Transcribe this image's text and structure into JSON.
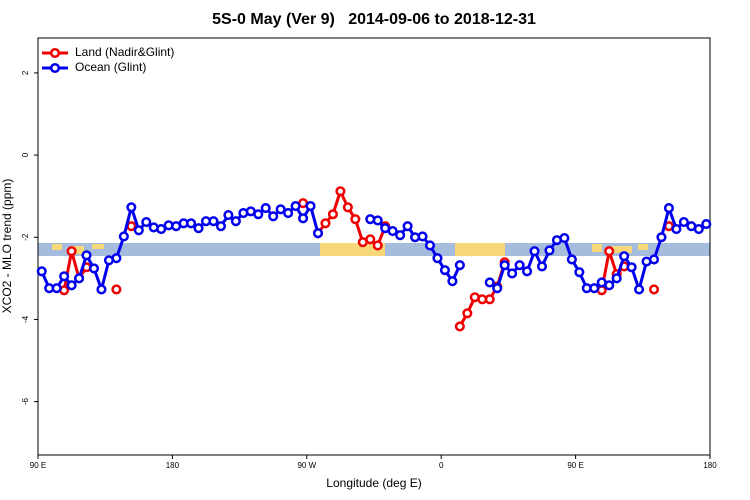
{
  "chart_data": {
    "type": "line",
    "title": "5S-0 May (Ver 9)   2014-09-06 to 2018-12-31",
    "x_label": "Longitude (deg E)",
    "y_label": "XCO2 - MLO trend (ppm)",
    "xlim": [
      90,
      540
    ],
    "ylim": [
      -7.3,
      2.85
    ],
    "xticks": [
      {
        "value": 90,
        "label": "90 E"
      },
      {
        "value": 180,
        "label": "180"
      },
      {
        "value": 270,
        "label": "90 W"
      },
      {
        "value": 360,
        "label": "0"
      },
      {
        "value": 450,
        "label": "90 E"
      },
      {
        "value": 540,
        "label": "180"
      }
    ],
    "yticks": [
      2,
      0,
      -2,
      -4,
      -6
    ],
    "legend": "top-left",
    "x": [
      92.5,
      97.5,
      102.5,
      107.5,
      112.5,
      117.5,
      122.5,
      127.5,
      132.5,
      137.5,
      142.5,
      147.5,
      152.5,
      157.5,
      162.5,
      167.5,
      172.5,
      177.5,
      182.5,
      187.5,
      192.5,
      197.5,
      202.5,
      207.5,
      212.5,
      217.5,
      222.5,
      227.5,
      232.5,
      237.5,
      242.5,
      247.5,
      252.5,
      257.5,
      262.5,
      267.5,
      272.5,
      277.5,
      282.5,
      287.5,
      292.5,
      297.5,
      302.5,
      307.5,
      312.5,
      317.5,
      322.5,
      327.5,
      332.5,
      337.5,
      342.5,
      347.5,
      352.5,
      357.5,
      362.5,
      367.5,
      372.5,
      377.5,
      382.5,
      387.5,
      392.5,
      397.5,
      402.5,
      407.5,
      412.5,
      417.5,
      422.5,
      427.5,
      432.5,
      437.5,
      442.5,
      447.5,
      452.5,
      457.5,
      462.5,
      467.5,
      472.5,
      477.5,
      482.5,
      487.5,
      492.5,
      497.5,
      502.5,
      507.5,
      512.5,
      517.5,
      522.5,
      527.5,
      532.5,
      537.5
    ],
    "series": [
      {
        "name": "Land (Nadir&Glint)",
        "color": "#ee0000",
        "values": [
          null,
          null,
          null,
          -3.29,
          -2.34,
          -3.0,
          -2.73,
          null,
          null,
          null,
          -3.27,
          null,
          -1.73,
          null,
          null,
          null,
          null,
          null,
          null,
          null,
          null,
          null,
          null,
          null,
          null,
          null,
          null,
          null,
          null,
          null,
          null,
          null,
          null,
          null,
          null,
          -1.17,
          null,
          -1.9,
          -1.66,
          -1.44,
          -0.88,
          -1.27,
          -1.56,
          -2.12,
          -2.05,
          -2.2,
          -1.73,
          null,
          null,
          null,
          null,
          null,
          null,
          null,
          null,
          null,
          -4.17,
          -3.85,
          -3.46,
          -3.51,
          -3.51,
          -3.2,
          -2.61,
          null,
          null,
          null,
          null,
          null,
          null,
          null,
          null,
          null,
          null,
          null,
          null,
          -3.29,
          -2.34,
          -2.9,
          -2.71,
          null,
          null,
          null,
          -3.27,
          null,
          -1.73,
          null,
          null,
          null,
          null,
          null
        ]
      },
      {
        "name": "Ocean (Glint)",
        "color": "#0000ee",
        "values": [
          -2.83,
          -3.24,
          -3.24,
          -2.95,
          -3.17,
          -3.0,
          -2.44,
          -2.76,
          -3.27,
          -2.56,
          -2.51,
          -1.98,
          -1.27,
          -1.83,
          -1.63,
          -1.76,
          -1.8,
          -1.71,
          -1.73,
          -1.66,
          -1.66,
          -1.78,
          -1.61,
          -1.61,
          -1.73,
          -1.46,
          -1.61,
          -1.41,
          -1.37,
          -1.44,
          -1.29,
          -1.49,
          -1.32,
          -1.41,
          -1.24,
          -1.54,
          -1.24,
          -1.9,
          null,
          null,
          null,
          null,
          null,
          null,
          -1.56,
          -1.59,
          -1.78,
          -1.85,
          -1.95,
          -1.73,
          -2.0,
          -1.98,
          -2.2,
          -2.51,
          -2.8,
          -3.07,
          -2.68,
          null,
          null,
          null,
          -3.1,
          -3.24,
          -2.68,
          -2.88,
          -2.68,
          -2.83,
          -2.34,
          -2.71,
          -2.32,
          -2.07,
          -2.02,
          -2.54,
          -2.85,
          -3.24,
          -3.24,
          -3.1,
          -3.17,
          -3.0,
          -2.46,
          -2.73,
          -3.27,
          -2.59,
          -2.54,
          -2.0,
          -1.29,
          -1.8,
          -1.63,
          -1.73,
          -1.8,
          -1.68
        ]
      }
    ]
  }
}
